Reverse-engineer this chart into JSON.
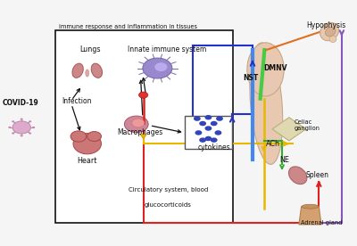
{
  "bg_color": "#f5f5f5",
  "box_label": "immune response and inflammation in tissues",
  "labels": {
    "covid19": "COVID-19",
    "lungs": "Lungs",
    "heart": "Heart",
    "infection": "Infection",
    "innate": "Innate immune system",
    "macrophages": "Macrophages",
    "cytokines": "cytokines",
    "nst": "NST",
    "dmnv": "DMNV",
    "ach": "ACh",
    "celiac": "Celiac\nganglion",
    "ne": "NE",
    "spleen": "Spleen",
    "adrenal": "Adrenal gland",
    "hypophysis": "Hypophysis",
    "circulatory": "Circulatory system, blood",
    "glucocorticoids": "glucocorticoids"
  },
  "colors": {
    "red": "#dd2222",
    "blue": "#2233cc",
    "yellow": "#e8b800",
    "dark_yellow": "#c8a000",
    "green": "#33aa33",
    "purple": "#8855bb",
    "orange": "#e07020",
    "black": "#111111",
    "brainstem_skin": "#e8c8b0",
    "skin_edge": "#c4a888"
  }
}
